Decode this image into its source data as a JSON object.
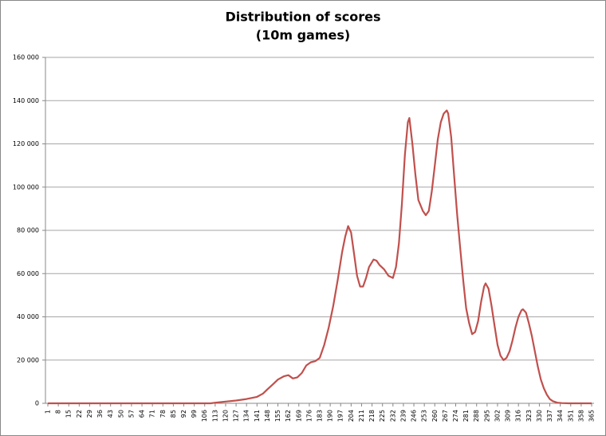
{
  "chart_data": {
    "type": "line",
    "title": "Distribution of scores",
    "subtitle": "(10m games)",
    "x": [
      1,
      110,
      113,
      120,
      127,
      134,
      141,
      145,
      148,
      152,
      155,
      159,
      162,
      165,
      168,
      171,
      174,
      177,
      180,
      183,
      186,
      189,
      192,
      195,
      198,
      200,
      202,
      204,
      206,
      208,
      210,
      212,
      214,
      216,
      219,
      221,
      223,
      226,
      229,
      232,
      234,
      236,
      238,
      240,
      242,
      243,
      245,
      247,
      249,
      252,
      254,
      256,
      258,
      260,
      262,
      264,
      266,
      268,
      269,
      271,
      273,
      275,
      277,
      279,
      281,
      283,
      285,
      287,
      289,
      291,
      293,
      294,
      296,
      298,
      300,
      302,
      304,
      306,
      308,
      310,
      312,
      314,
      316,
      318,
      319,
      321,
      323,
      325,
      327,
      329,
      331,
      333,
      335,
      337,
      339,
      342,
      345,
      350,
      360,
      365
    ],
    "series": [
      {
        "color": "#c0504d",
        "values": [
          0,
          0,
          300,
          800,
          1300,
          2000,
          3000,
          4500,
          6500,
          9000,
          11000,
          12500,
          13000,
          11500,
          12000,
          14000,
          17500,
          19000,
          19500,
          21000,
          27000,
          35000,
          45000,
          57000,
          70000,
          77000,
          82000,
          79000,
          69000,
          59000,
          54000,
          54000,
          58000,
          63000,
          66500,
          66000,
          64000,
          62000,
          59000,
          58000,
          63000,
          74000,
          92000,
          115000,
          130000,
          132000,
          120000,
          106000,
          94000,
          89000,
          87000,
          89000,
          98000,
          110000,
          122000,
          130000,
          134000,
          135500,
          134000,
          123000,
          105000,
          87000,
          72000,
          57000,
          44000,
          37000,
          32000,
          33000,
          38000,
          47000,
          54000,
          55500,
          53000,
          45000,
          36000,
          27000,
          22000,
          20000,
          21000,
          24000,
          29000,
          35000,
          40000,
          43000,
          43500,
          42000,
          37000,
          31000,
          24000,
          17000,
          11000,
          7000,
          4000,
          2000,
          1000,
          300,
          100,
          0,
          0,
          0
        ]
      }
    ],
    "xlim": [
      1,
      365
    ],
    "xticks": [
      1,
      8,
      15,
      22,
      29,
      36,
      43,
      50,
      57,
      64,
      71,
      78,
      85,
      92,
      99,
      106,
      113,
      120,
      127,
      134,
      141,
      148,
      155,
      162,
      169,
      176,
      183,
      190,
      197,
      204,
      211,
      218,
      225,
      232,
      239,
      246,
      253,
      260,
      267,
      274,
      281,
      288,
      295,
      302,
      309,
      316,
      323,
      330,
      337,
      344,
      351,
      358,
      365
    ],
    "ylim": [
      0,
      160000
    ],
    "yticks": [
      0,
      {
        "value": 20000,
        "label": "20 000"
      },
      {
        "value": 40000,
        "label": "40 000"
      },
      {
        "value": 60000,
        "label": "60 000"
      },
      {
        "value": 80000,
        "label": "80 000"
      },
      {
        "value": 100000,
        "label": "100 000"
      },
      {
        "value": 120000,
        "label": "120 000"
      },
      {
        "value": 140000,
        "label": "140 000"
      },
      {
        "value": 160000,
        "label": "160 000"
      }
    ],
    "grid": true
  }
}
